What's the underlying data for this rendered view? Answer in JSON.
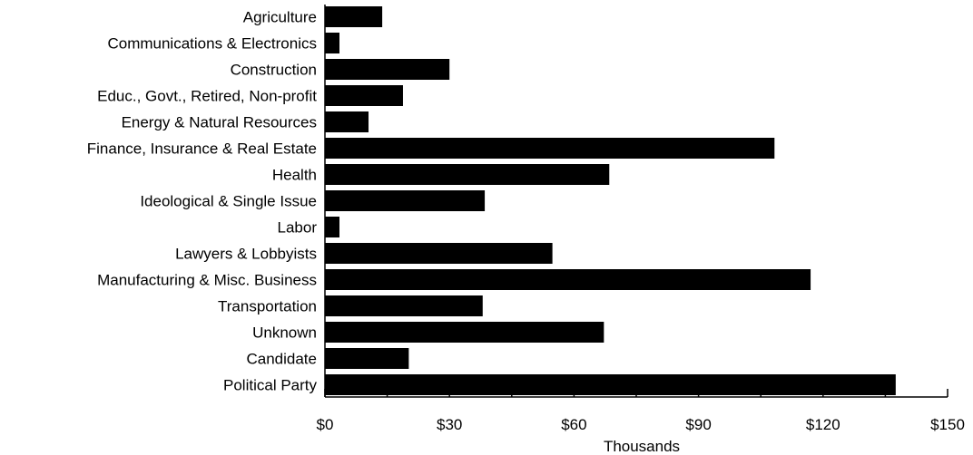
{
  "chart_data": {
    "type": "bar",
    "orientation": "horizontal",
    "categories": [
      "Agriculture",
      "Communications & Electronics",
      "Construction",
      "Educ., Govt., Retired, Non-profit",
      "Energy & Natural Resources",
      "Finance, Insurance & Real Estate",
      "Health",
      "Ideological & Single Issue",
      "Labor",
      "Lawyers & Lobbyists",
      "Manufacturing & Misc. Business",
      "Transportation",
      "Unknown",
      "Candidate",
      "Political Party"
    ],
    "values": [
      13.8,
      3.5,
      30,
      18.8,
      10.5,
      108.3,
      68.5,
      38.5,
      3.5,
      54.8,
      117,
      38,
      67.2,
      20.2,
      137.5
    ],
    "xlim": [
      0,
      150
    ],
    "xticks": [
      "$0",
      "$30",
      "$60",
      "$90",
      "$120",
      "$150"
    ],
    "xtick_values": [
      0,
      30,
      60,
      90,
      120,
      150
    ],
    "minor_tick_step": 15,
    "xlabel": "Thousands",
    "ylabel": "",
    "title": "",
    "bar_color": "#000000",
    "grid": false,
    "legend": "none"
  }
}
